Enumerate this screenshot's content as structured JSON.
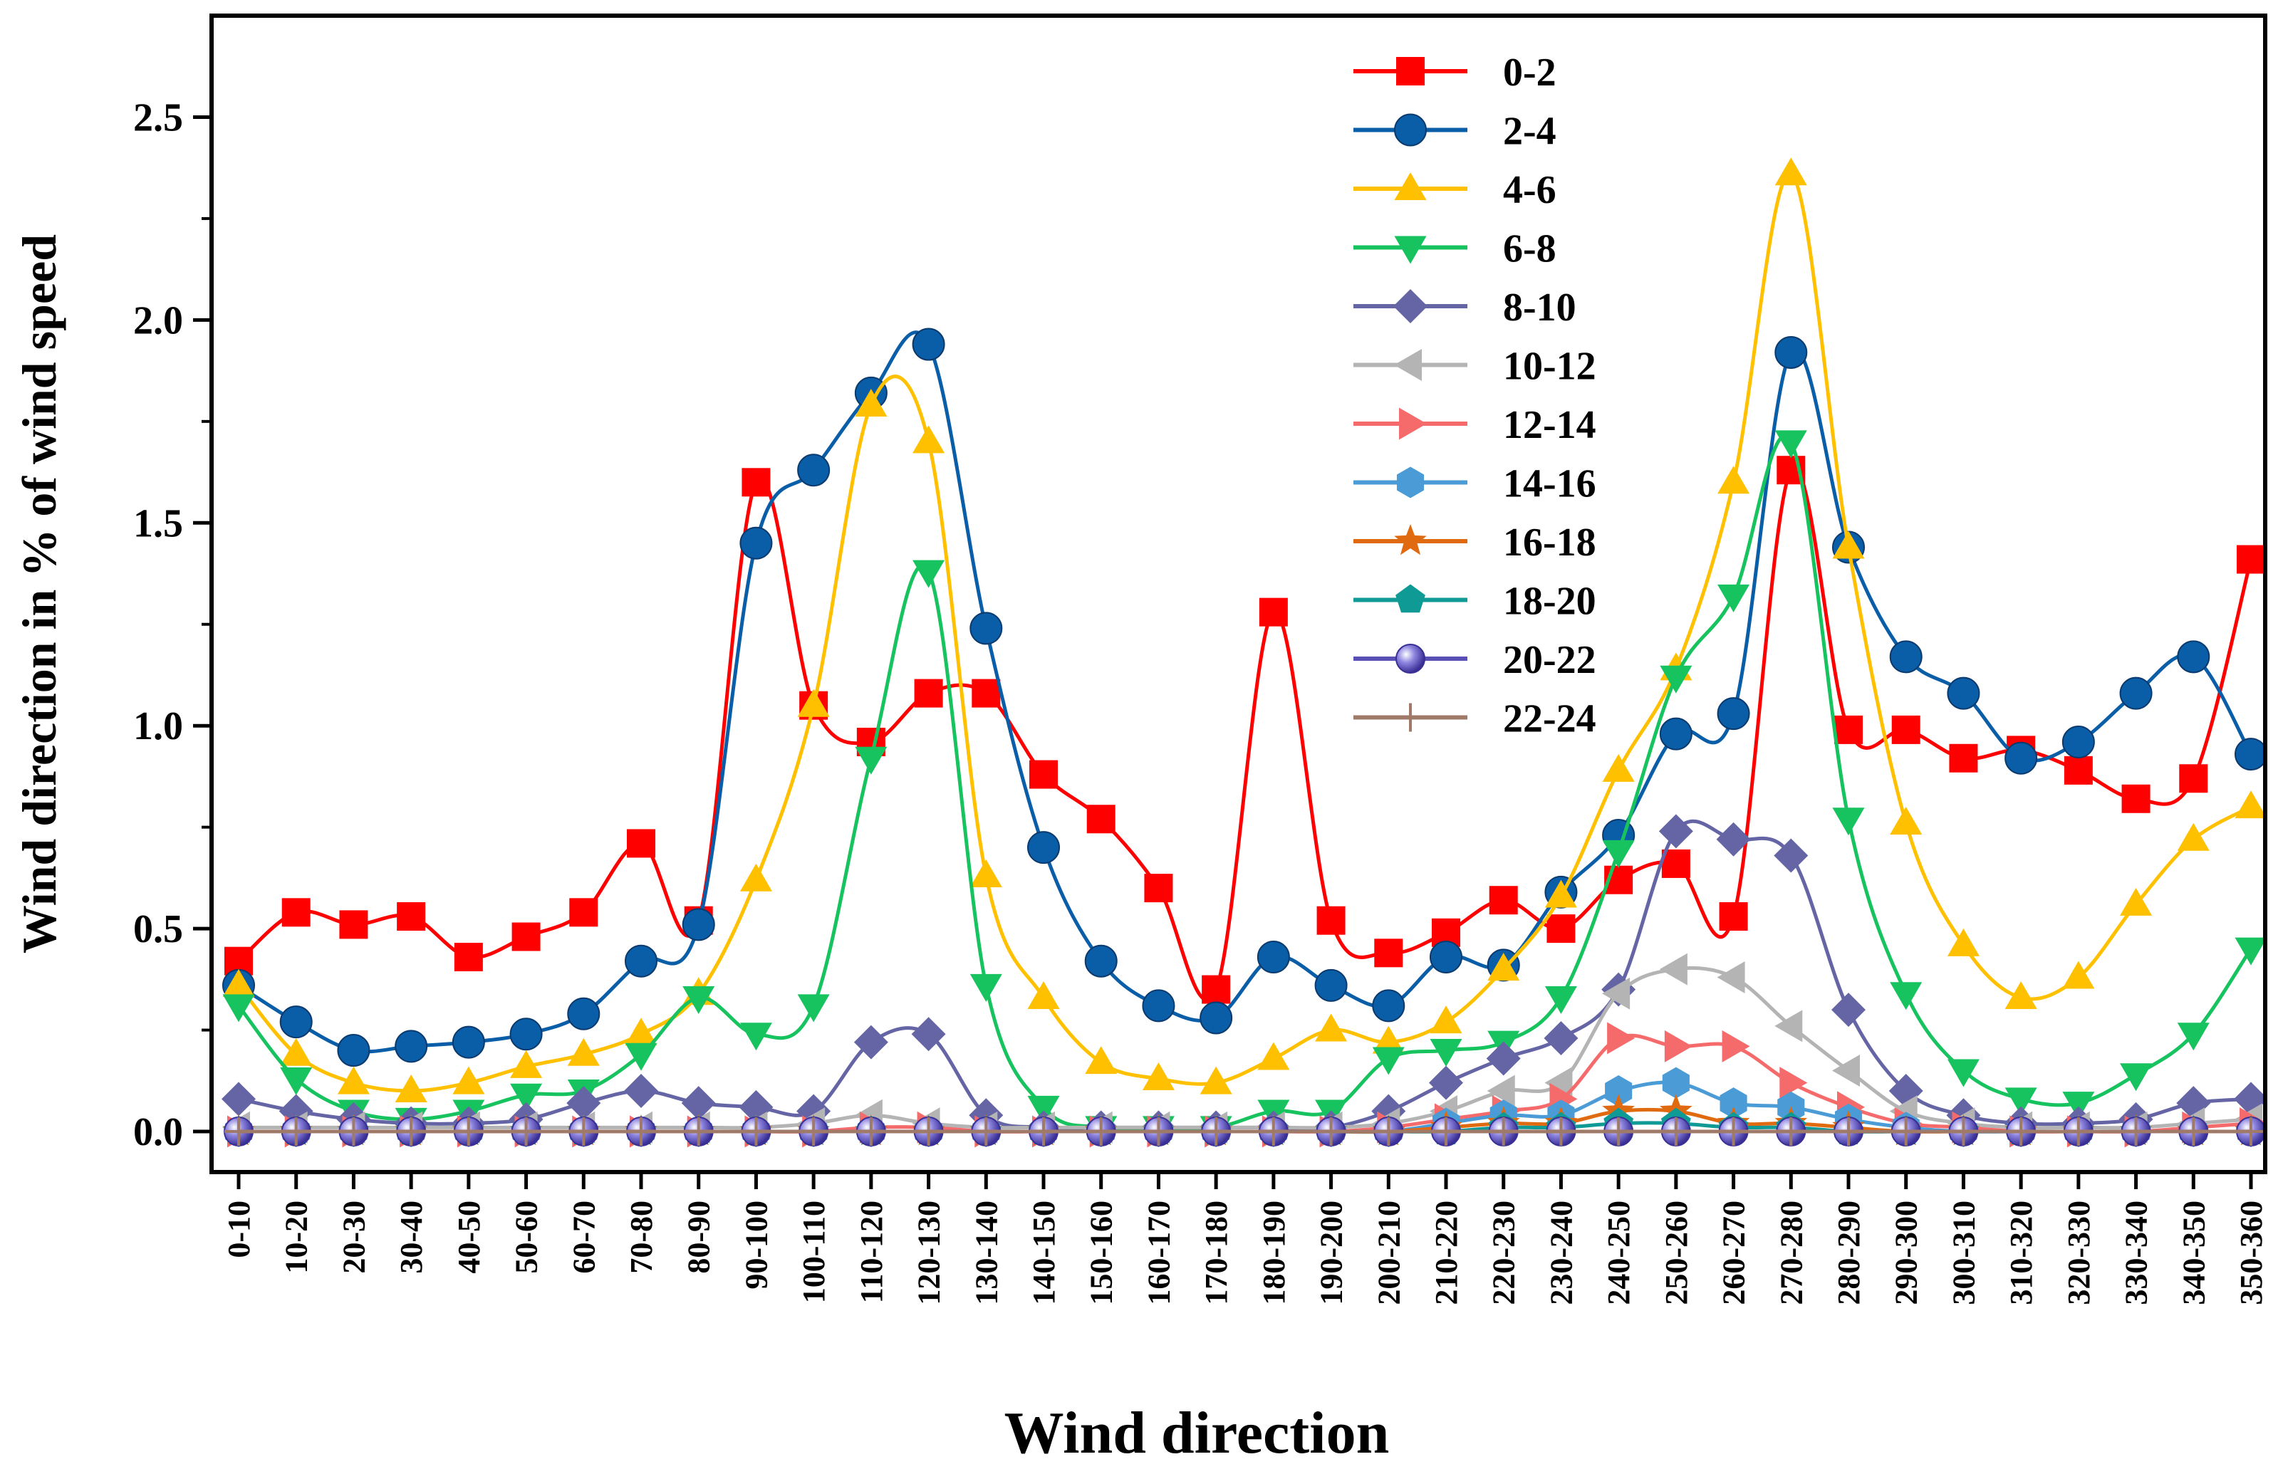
{
  "chart_data": {
    "type": "line",
    "xlabel": "Wind direction",
    "ylabel": "Wind direction in % of wind speed",
    "ylim": [
      -0.1,
      2.75
    ],
    "yticks": [
      "0.0",
      "0.5",
      "1.0",
      "1.5",
      "2.0",
      "2.5"
    ],
    "legend_position": "top-center",
    "categories": [
      "0-10",
      "10-20",
      "20-30",
      "30-40",
      "40-50",
      "50-60",
      "60-70",
      "70-80",
      "80-90",
      "90-100",
      "100-110",
      "110-120",
      "120-130",
      "130-140",
      "140-150",
      "150-160",
      "160-170",
      "170-180",
      "180-190",
      "190-200",
      "200-210",
      "210-220",
      "220-230",
      "230-240",
      "240-250",
      "250-260",
      "260-270",
      "270-280",
      "280-290",
      "290-300",
      "300-310",
      "310-320",
      "320-330",
      "330-340",
      "340-350",
      "350-360"
    ],
    "series": [
      {
        "name": "0-2",
        "color": "#ff0000",
        "marker": "square",
        "values": [
          0.42,
          0.54,
          0.51,
          0.53,
          0.43,
          0.48,
          0.54,
          0.71,
          0.52,
          1.6,
          1.05,
          0.96,
          1.08,
          1.08,
          0.88,
          0.77,
          0.6,
          0.35,
          1.28,
          0.52,
          0.44,
          0.49,
          0.57,
          0.5,
          0.62,
          0.66,
          0.53,
          1.63,
          0.99,
          0.99,
          0.92,
          0.94,
          0.89,
          0.82,
          0.87,
          1.41
        ]
      },
      {
        "name": "2-4",
        "color": "#0a5ea8",
        "marker": "circle",
        "values": [
          0.36,
          0.27,
          0.2,
          0.21,
          0.22,
          0.24,
          0.29,
          0.42,
          0.51,
          1.45,
          1.63,
          1.82,
          1.94,
          1.24,
          0.7,
          0.42,
          0.31,
          0.28,
          0.43,
          0.36,
          0.31,
          0.43,
          0.41,
          0.59,
          0.73,
          0.98,
          1.03,
          1.92,
          1.44,
          1.17,
          1.08,
          0.92,
          0.96,
          1.08,
          1.17,
          0.93
        ]
      },
      {
        "name": "4-6",
        "color": "#ffc000",
        "marker": "triangle-up",
        "values": [
          0.36,
          0.19,
          0.12,
          0.1,
          0.12,
          0.16,
          0.19,
          0.24,
          0.34,
          0.62,
          1.05,
          1.79,
          1.7,
          0.63,
          0.33,
          0.17,
          0.13,
          0.12,
          0.18,
          0.25,
          0.22,
          0.27,
          0.4,
          0.58,
          0.89,
          1.14,
          1.6,
          2.36,
          1.44,
          0.76,
          0.46,
          0.33,
          0.38,
          0.56,
          0.72,
          0.8
        ]
      },
      {
        "name": "6-8",
        "color": "#17c35e",
        "marker": "triangle-down",
        "values": [
          0.31,
          0.13,
          0.05,
          0.03,
          0.05,
          0.09,
          0.1,
          0.19,
          0.33,
          0.24,
          0.31,
          0.92,
          1.38,
          0.36,
          0.06,
          0.01,
          0.01,
          0.01,
          0.05,
          0.05,
          0.18,
          0.2,
          0.22,
          0.33,
          0.69,
          1.12,
          1.32,
          1.7,
          0.77,
          0.34,
          0.15,
          0.08,
          0.07,
          0.14,
          0.24,
          0.45
        ]
      },
      {
        "name": "8-10",
        "color": "#6565a6",
        "marker": "diamond",
        "values": [
          0.08,
          0.05,
          0.03,
          0.02,
          0.02,
          0.03,
          0.07,
          0.1,
          0.07,
          0.06,
          0.05,
          0.22,
          0.24,
          0.04,
          0.01,
          0.01,
          0.01,
          0.01,
          0.01,
          0.01,
          0.05,
          0.12,
          0.18,
          0.23,
          0.35,
          0.74,
          0.72,
          0.68,
          0.3,
          0.1,
          0.04,
          0.02,
          0.02,
          0.03,
          0.07,
          0.08
        ]
      },
      {
        "name": "10-12",
        "color": "#b4b4b4",
        "marker": "triangle-left",
        "values": [
          0.01,
          0.01,
          0.01,
          0.01,
          0.01,
          0.01,
          0.01,
          0.01,
          0.01,
          0.01,
          0.02,
          0.04,
          0.02,
          0.01,
          0.01,
          0.01,
          0.01,
          0.01,
          0.01,
          0.01,
          0.02,
          0.05,
          0.1,
          0.12,
          0.34,
          0.4,
          0.38,
          0.26,
          0.15,
          0.05,
          0.02,
          0.01,
          0.01,
          0.01,
          0.02,
          0.03
        ]
      },
      {
        "name": "12-14",
        "color": "#f56b6b",
        "marker": "triangle-right",
        "values": [
          0.0,
          0.0,
          0.0,
          0.0,
          0.0,
          0.0,
          0.0,
          0.0,
          0.0,
          0.0,
          0.0,
          0.01,
          0.01,
          0.0,
          0.0,
          0.0,
          0.0,
          0.0,
          0.0,
          0.0,
          0.01,
          0.03,
          0.05,
          0.08,
          0.23,
          0.21,
          0.21,
          0.12,
          0.06,
          0.02,
          0.01,
          0.0,
          0.0,
          0.0,
          0.01,
          0.02
        ]
      },
      {
        "name": "14-16",
        "color": "#4a9bd6",
        "marker": "hexagon",
        "values": [
          0.0,
          0.0,
          0.0,
          0.0,
          0.0,
          0.0,
          0.0,
          0.0,
          0.0,
          0.0,
          0.0,
          0.0,
          0.0,
          0.0,
          0.0,
          0.0,
          0.0,
          0.0,
          0.0,
          0.0,
          0.0,
          0.02,
          0.04,
          0.04,
          0.1,
          0.12,
          0.07,
          0.06,
          0.03,
          0.01,
          0.0,
          0.0,
          0.0,
          0.0,
          0.0,
          0.0
        ]
      },
      {
        "name": "16-18",
        "color": "#e06a10",
        "marker": "star",
        "values": [
          0.0,
          0.0,
          0.0,
          0.0,
          0.0,
          0.0,
          0.0,
          0.0,
          0.0,
          0.0,
          0.0,
          0.0,
          0.0,
          0.0,
          0.0,
          0.0,
          0.0,
          0.0,
          0.0,
          0.0,
          0.0,
          0.01,
          0.02,
          0.02,
          0.05,
          0.05,
          0.02,
          0.02,
          0.01,
          0.0,
          0.0,
          0.0,
          0.0,
          0.0,
          0.0,
          0.0
        ]
      },
      {
        "name": "18-20",
        "color": "#0f9a96",
        "marker": "pentagon",
        "values": [
          0.0,
          0.0,
          0.0,
          0.0,
          0.0,
          0.0,
          0.0,
          0.0,
          0.0,
          0.0,
          0.0,
          0.0,
          0.0,
          0.0,
          0.0,
          0.0,
          0.0,
          0.0,
          0.0,
          0.0,
          0.0,
          0.0,
          0.01,
          0.01,
          0.02,
          0.02,
          0.01,
          0.01,
          0.0,
          0.0,
          0.0,
          0.0,
          0.0,
          0.0,
          0.0,
          0.0
        ]
      },
      {
        "name": "20-22",
        "color": "#5a4fb5",
        "marker": "sphere",
        "values": [
          0.0,
          0.0,
          0.0,
          0.0,
          0.0,
          0.0,
          0.0,
          0.0,
          0.0,
          0.0,
          0.0,
          0.0,
          0.0,
          0.0,
          0.0,
          0.0,
          0.0,
          0.0,
          0.0,
          0.0,
          0.0,
          0.0,
          0.0,
          0.0,
          0.0,
          0.0,
          0.0,
          0.0,
          0.0,
          0.0,
          0.0,
          0.0,
          0.0,
          0.0,
          0.0,
          0.0
        ]
      },
      {
        "name": "22-24",
        "color": "#a07a68",
        "marker": "plus",
        "values": [
          0.0,
          0.0,
          0.0,
          0.0,
          0.0,
          0.0,
          0.0,
          0.0,
          0.0,
          0.0,
          0.0,
          0.0,
          0.0,
          0.0,
          0.0,
          0.0,
          0.0,
          0.0,
          0.0,
          0.0,
          0.0,
          0.0,
          0.0,
          0.0,
          0.0,
          0.0,
          0.0,
          0.0,
          0.0,
          0.0,
          0.0,
          0.0,
          0.0,
          0.0,
          0.0,
          0.0
        ]
      }
    ]
  }
}
